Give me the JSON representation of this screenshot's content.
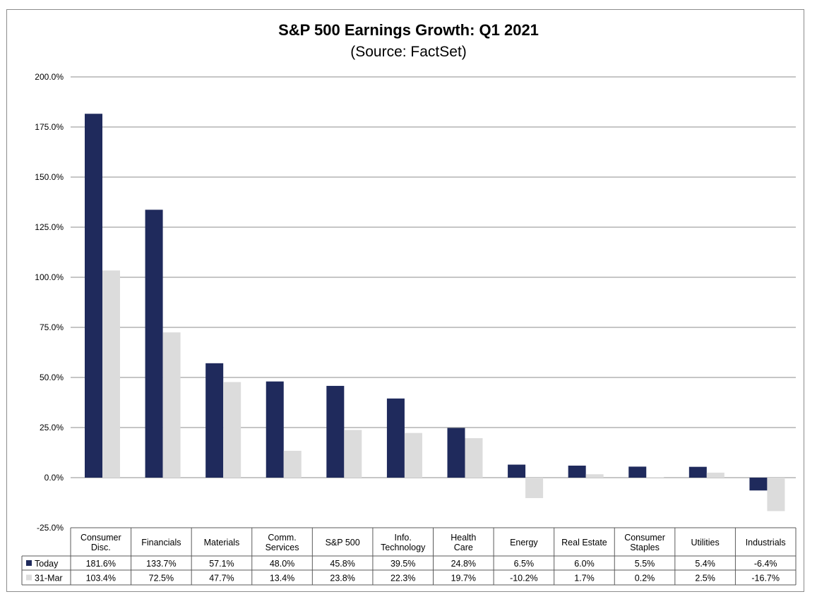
{
  "chart_data": {
    "type": "bar",
    "title": "S&P 500 Earnings Growth: Q1 2021",
    "subtitle": "(Source: FactSet)",
    "categories": [
      [
        "Consumer",
        "Disc."
      ],
      [
        "Financials"
      ],
      [
        "Materials"
      ],
      [
        "Comm.",
        "Services"
      ],
      [
        "S&P 500"
      ],
      [
        "Info.",
        "Technology"
      ],
      [
        "Health",
        "Care"
      ],
      [
        "Energy"
      ],
      [
        "Real Estate"
      ],
      [
        "Consumer",
        "Staples"
      ],
      [
        "Utilities"
      ],
      [
        "Industrials"
      ]
    ],
    "series": [
      {
        "name": "Today",
        "color": "#1f2a5c",
        "values": [
          181.6,
          133.7,
          57.1,
          48.0,
          45.8,
          39.5,
          24.8,
          6.5,
          6.0,
          5.5,
          5.4,
          -6.4
        ],
        "labels": [
          "181.6%",
          "133.7%",
          "57.1%",
          "48.0%",
          "45.8%",
          "39.5%",
          "24.8%",
          "6.5%",
          "6.0%",
          "5.5%",
          "5.4%",
          "-6.4%"
        ]
      },
      {
        "name": "31-Mar",
        "color": "#dcdcdc",
        "values": [
          103.4,
          72.5,
          47.7,
          13.4,
          23.8,
          22.3,
          19.7,
          -10.2,
          1.7,
          0.2,
          2.5,
          -16.7
        ],
        "labels": [
          "103.4%",
          "72.5%",
          "47.7%",
          "13.4%",
          "23.8%",
          "22.3%",
          "19.7%",
          "-10.2%",
          "1.7%",
          "0.2%",
          "2.5%",
          "-16.7%"
        ]
      }
    ],
    "ylim": [
      -25,
      200
    ],
    "yticks": [
      200,
      175,
      150,
      125,
      100,
      75,
      50,
      25,
      0,
      -25
    ],
    "ytick_labels": [
      "200.0%",
      "175.0%",
      "150.0%",
      "125.0%",
      "100.0%",
      "75.0%",
      "50.0%",
      "25.0%",
      "0.0%",
      "-25.0%"
    ],
    "grid": true,
    "legend": "data-table"
  }
}
